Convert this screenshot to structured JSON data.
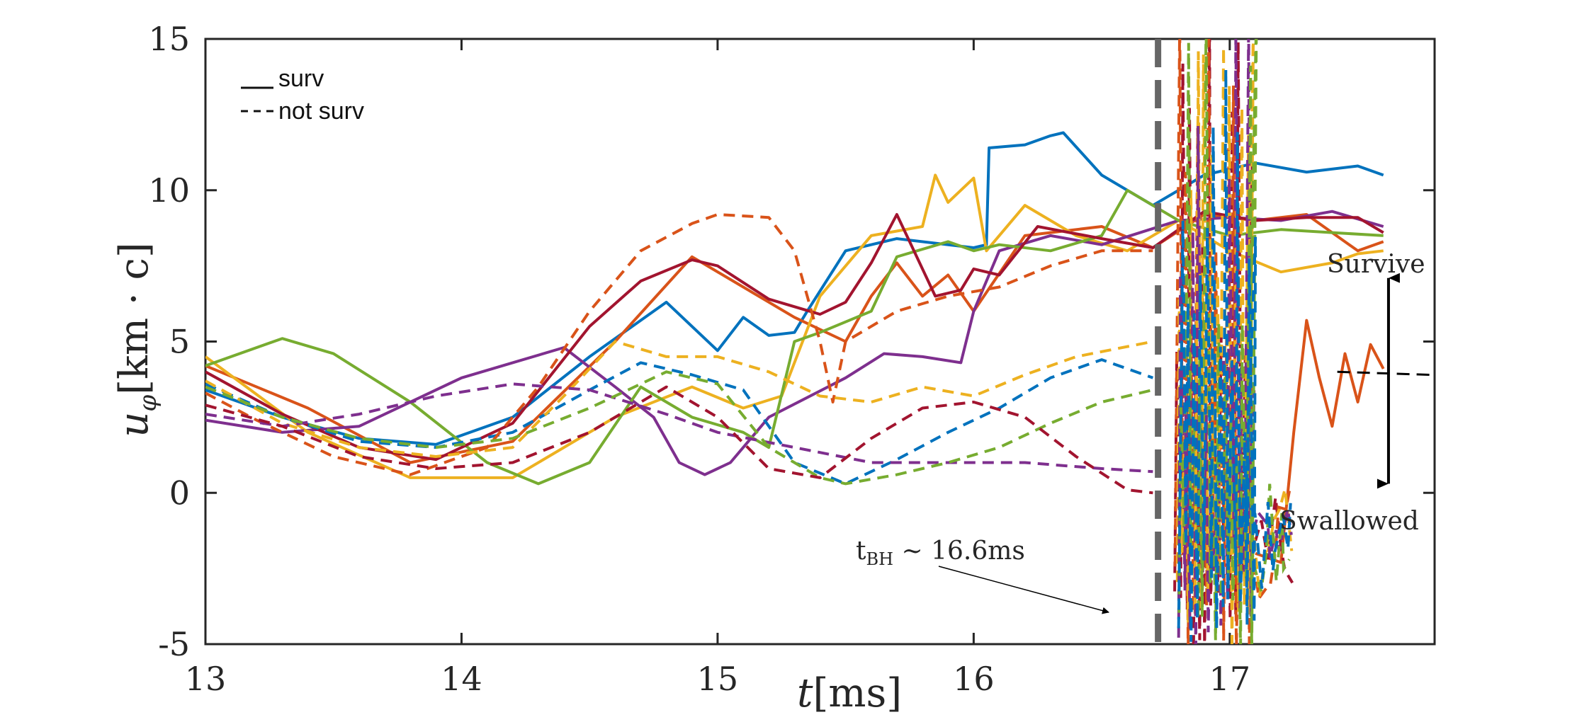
{
  "chart_data": {
    "type": "line",
    "xlabel": "t[ms]",
    "ylabel": "u_φ[km · c]",
    "xlim": [
      13,
      17.8
    ],
    "ylim": [
      -5,
      15
    ],
    "xticks": [
      "13",
      "14",
      "15",
      "16",
      "17"
    ],
    "yticks": [
      "15",
      "10",
      "5",
      "0",
      "-5"
    ],
    "legend": {
      "position": "top-left",
      "entries": [
        {
          "style": "solid",
          "label": "surv"
        },
        {
          "style": "dashed",
          "label": "not surv"
        }
      ]
    },
    "annotations": {
      "tbh": "t",
      "tbh_sub": "BH",
      "tbh_rest": " ∼ 16.6ms",
      "tbh_value": 16.72,
      "survive": "Survive",
      "swallowed": "Swallowed",
      "threshold": 4.0
    },
    "colors": {
      "blue": "#0072BD",
      "orange": "#D95319",
      "yellow": "#EDB120",
      "purple": "#7E2F8E",
      "green": "#77AC30",
      "darkred": "#A2142F",
      "bh_line": "#666666"
    },
    "series": [
      {
        "name": "blue-surv",
        "color": "blue",
        "style": "solid",
        "x": [
          13,
          13.3,
          13.6,
          13.9,
          14.2,
          14.5,
          14.8,
          15.0,
          15.1,
          15.2,
          15.3,
          15.35,
          15.5,
          15.7,
          16.0,
          16.05,
          16.06,
          16.2,
          16.3,
          16.35,
          16.5,
          16.7,
          16.9,
          17.1,
          17.3,
          17.5,
          17.6
        ],
        "y": [
          3.4,
          2.5,
          1.8,
          1.6,
          2.5,
          4.5,
          6.3,
          4.7,
          5.8,
          5.2,
          5.3,
          6.0,
          8.0,
          8.4,
          8.1,
          8.2,
          11.4,
          11.5,
          11.8,
          11.9,
          10.5,
          9.5,
          10.5,
          10.9,
          10.6,
          10.8,
          10.5
        ]
      },
      {
        "name": "orange-surv",
        "color": "orange",
        "style": "solid",
        "x": [
          13,
          13.4,
          13.8,
          14.2,
          14.6,
          14.9,
          15.1,
          15.3,
          15.5,
          15.6,
          15.7,
          15.8,
          15.9,
          16.0,
          16.2,
          16.5,
          16.7,
          16.9,
          17.1,
          17.3,
          17.5,
          17.6
        ],
        "y": [
          4.2,
          2.8,
          1.0,
          1.7,
          5.0,
          7.8,
          6.8,
          5.8,
          5.0,
          6.5,
          7.6,
          6.5,
          7.2,
          6.0,
          8.5,
          8.8,
          8.1,
          9.2,
          9.0,
          9.2,
          8.0,
          8.3
        ]
      },
      {
        "name": "yellow-surv",
        "color": "yellow",
        "style": "solid",
        "x": [
          13,
          13.4,
          13.8,
          14.2,
          14.6,
          14.9,
          15.1,
          15.25,
          15.4,
          15.6,
          15.8,
          15.85,
          15.9,
          16.0,
          16.05,
          16.2,
          16.4,
          16.6,
          16.8,
          17.0,
          17.2,
          17.4,
          17.5,
          17.6
        ],
        "y": [
          4.5,
          2.0,
          0.5,
          0.5,
          2.5,
          3.5,
          2.8,
          3.2,
          6.5,
          8.5,
          8.8,
          10.5,
          9.6,
          10.4,
          8.0,
          9.5,
          8.5,
          8.0,
          9.0,
          8.0,
          7.3,
          7.6,
          7.9,
          8.0
        ]
      },
      {
        "name": "purple-surv",
        "color": "purple",
        "style": "solid",
        "x": [
          13,
          13.3,
          13.6,
          14.0,
          14.4,
          14.6,
          14.75,
          14.85,
          14.95,
          15.05,
          15.2,
          15.5,
          15.65,
          15.8,
          15.95,
          16.0,
          16.1,
          16.3,
          16.5,
          16.8,
          17.0,
          17.2,
          17.4,
          17.6
        ],
        "y": [
          2.4,
          2.0,
          2.2,
          3.8,
          4.8,
          3.5,
          2.5,
          1.0,
          0.6,
          1.0,
          2.5,
          3.8,
          4.6,
          4.5,
          4.3,
          6.0,
          8.0,
          8.5,
          8.2,
          9.0,
          9.1,
          9.0,
          9.3,
          8.8
        ]
      },
      {
        "name": "green-surv",
        "color": "green",
        "style": "solid",
        "x": [
          13,
          13.3,
          13.5,
          13.8,
          14.1,
          14.3,
          14.5,
          14.7,
          14.9,
          15.1,
          15.2,
          15.3,
          15.4,
          15.6,
          15.7,
          15.9,
          16.0,
          16.1,
          16.3,
          16.5,
          16.6,
          16.8,
          17.0,
          17.2,
          17.4,
          17.6
        ],
        "y": [
          4.2,
          5.1,
          4.6,
          3.0,
          1.0,
          0.3,
          1.0,
          3.5,
          2.5,
          2.0,
          1.5,
          5.0,
          5.3,
          6.0,
          7.8,
          8.3,
          8.0,
          8.2,
          8.0,
          8.5,
          10.0,
          9.0,
          8.5,
          8.7,
          8.6,
          8.5
        ]
      },
      {
        "name": "darkred-surv",
        "color": "darkred",
        "style": "solid",
        "x": [
          13,
          13.3,
          13.6,
          13.9,
          14.2,
          14.5,
          14.7,
          14.9,
          15.0,
          15.2,
          15.4,
          15.5,
          15.6,
          15.7,
          15.75,
          15.85,
          15.95,
          16.0,
          16.1,
          16.25,
          16.5,
          16.7,
          16.9,
          17.1,
          17.3,
          17.5,
          17.6
        ],
        "y": [
          4.0,
          2.6,
          1.5,
          1.1,
          2.3,
          5.5,
          7.0,
          7.7,
          7.5,
          6.4,
          5.9,
          6.3,
          7.6,
          9.2,
          8.3,
          6.5,
          6.7,
          7.4,
          7.2,
          8.8,
          8.4,
          8.1,
          9.3,
          9.0,
          9.1,
          9.1,
          8.6
        ]
      },
      {
        "name": "blue-dashed",
        "color": "blue",
        "style": "dashed",
        "x": [
          13,
          13.3,
          13.6,
          13.9,
          14.2,
          14.5,
          14.7,
          14.9,
          15.1,
          15.3,
          15.5,
          15.7,
          15.9,
          16.1,
          16.3,
          16.5,
          16.7
        ],
        "y": [
          3.6,
          2.5,
          1.7,
          1.5,
          2.0,
          3.4,
          4.3,
          3.9,
          3.4,
          1.0,
          0.3,
          1.1,
          2.0,
          2.8,
          3.8,
          4.4,
          3.8
        ]
      },
      {
        "name": "orange-dashed",
        "color": "orange",
        "style": "dashed",
        "x": [
          13,
          13.2,
          13.5,
          13.8,
          14.1,
          14.3,
          14.5,
          14.7,
          14.9,
          15.0,
          15.2,
          15.3,
          15.4,
          15.45,
          15.5,
          15.7,
          15.9,
          16.1,
          16.3,
          16.5,
          16.7
        ],
        "y": [
          3.3,
          2.4,
          1.2,
          0.6,
          1.5,
          3.5,
          6.0,
          8.0,
          8.9,
          9.2,
          9.1,
          8.0,
          5.0,
          3.0,
          5.0,
          6.0,
          6.5,
          6.8,
          7.5,
          8.0,
          8.0
        ]
      },
      {
        "name": "yellow-dashed",
        "color": "yellow",
        "style": "dashed",
        "x": [
          13,
          13.3,
          13.6,
          13.9,
          14.2,
          14.4,
          14.6,
          14.8,
          15.0,
          15.2,
          15.4,
          15.6,
          15.8,
          16.0,
          16.2,
          16.4,
          16.7
        ],
        "y": [
          3.7,
          2.3,
          1.5,
          1.2,
          1.5,
          3.2,
          5.0,
          4.5,
          4.5,
          4.0,
          3.2,
          3.0,
          3.5,
          3.2,
          3.9,
          4.5,
          5.0
        ]
      },
      {
        "name": "purple-dashed",
        "color": "purple",
        "style": "dashed",
        "x": [
          13,
          13.3,
          13.6,
          13.9,
          14.2,
          14.5,
          14.8,
          15.0,
          15.3,
          15.6,
          15.9,
          16.2,
          16.5,
          16.7
        ],
        "y": [
          2.6,
          2.2,
          2.6,
          3.2,
          3.6,
          3.4,
          2.6,
          2.0,
          1.5,
          1.0,
          1.0,
          1.0,
          0.8,
          0.7
        ]
      },
      {
        "name": "green-dashed",
        "color": "green",
        "style": "dashed",
        "x": [
          13,
          13.3,
          13.6,
          13.9,
          14.2,
          14.5,
          14.8,
          15.0,
          15.2,
          15.4,
          15.5,
          15.7,
          15.9,
          16.1,
          16.3,
          16.5,
          16.7
        ],
        "y": [
          3.5,
          2.5,
          1.8,
          1.5,
          1.8,
          2.8,
          4.0,
          3.6,
          1.5,
          0.5,
          0.3,
          0.6,
          1.0,
          1.5,
          2.3,
          3.0,
          3.4
        ]
      },
      {
        "name": "darkred-dashed",
        "color": "darkred",
        "style": "dashed",
        "x": [
          13,
          13.3,
          13.6,
          13.9,
          14.2,
          14.5,
          14.8,
          15.0,
          15.2,
          15.4,
          15.6,
          15.8,
          16.0,
          16.2,
          16.4,
          16.6,
          16.7
        ],
        "y": [
          2.9,
          2.2,
          1.2,
          0.8,
          1.0,
          2.0,
          3.5,
          2.5,
          0.8,
          0.5,
          1.8,
          2.8,
          3.0,
          2.5,
          1.2,
          0.1,
          0.0
        ]
      },
      {
        "name": "swallowed-trace",
        "color": "orange",
        "style": "solid",
        "x": [
          17.1,
          17.2,
          17.25,
          17.3,
          17.35,
          17.4,
          17.45,
          17.5,
          17.55,
          17.6
        ],
        "y": [
          -2.0,
          -2.3,
          2.0,
          5.7,
          3.8,
          2.2,
          4.6,
          3.0,
          4.9,
          4.1
        ]
      }
    ]
  }
}
